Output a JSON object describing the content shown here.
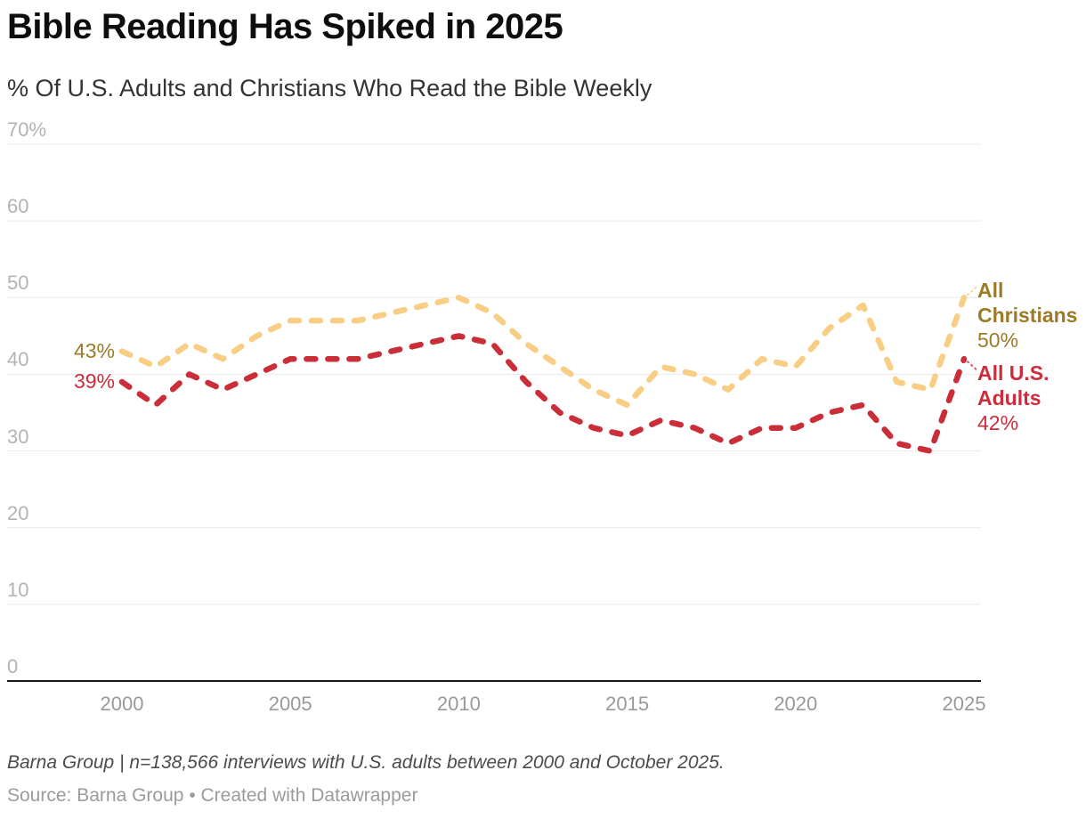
{
  "chart_data": {
    "type": "line",
    "title": "Bible Reading Has Spiked in 2025",
    "subtitle": "% Of U.S. Adults and Christians Who Read the Bible Weekly",
    "x": [
      2000,
      2001,
      2002,
      2003,
      2004,
      2005,
      2006,
      2007,
      2008,
      2009,
      2010,
      2011,
      2012,
      2013,
      2014,
      2015,
      2016,
      2017,
      2018,
      2019,
      2020,
      2021,
      2022,
      2023,
      2024,
      2025
    ],
    "xticks": [
      2000,
      2005,
      2010,
      2015,
      2020,
      2025
    ],
    "yticks": [
      {
        "value": 0,
        "label": "0"
      },
      {
        "value": 10,
        "label": "10"
      },
      {
        "value": 20,
        "label": "20"
      },
      {
        "value": 30,
        "label": "30"
      },
      {
        "value": 40,
        "label": "40"
      },
      {
        "value": 50,
        "label": "50"
      },
      {
        "value": 60,
        "label": "60"
      },
      {
        "value": 70,
        "label": "70%"
      }
    ],
    "ylim": [
      0,
      70
    ],
    "xlim": [
      2000,
      2025
    ],
    "grid": true,
    "legend_position": "right-edge-labels",
    "line_style": "dashed",
    "series": [
      {
        "name": "All Christians",
        "label_lines": [
          "All",
          "Christians"
        ],
        "start_value_label": "43%",
        "end_value_label": "50%",
        "line_color": "#F8CE85",
        "label_color": "#9C7B27",
        "values": [
          43,
          41,
          44,
          42,
          45,
          47,
          47,
          47,
          48,
          49,
          50,
          48,
          44,
          41,
          38,
          36,
          41,
          40,
          38,
          42,
          41,
          46,
          49,
          39,
          38,
          50
        ]
      },
      {
        "name": "All U.S. Adults",
        "label_lines": [
          "All U.S.",
          "Adults"
        ],
        "start_value_label": "39%",
        "end_value_label": "42%",
        "line_color": "#CA2E38",
        "label_color": "#CE2C3C",
        "values": [
          39,
          36,
          40,
          38,
          40,
          42,
          42,
          42,
          43,
          44,
          45,
          44,
          39,
          35,
          33,
          32,
          34,
          33,
          31,
          33,
          33,
          35,
          36,
          31,
          30,
          42
        ]
      }
    ]
  },
  "footer": {
    "note": "Barna Group | n=138,566 interviews with U.S. adults between 2000 and October 2025.",
    "source_prefix": "Source:",
    "source": "Barna Group",
    "separator": "•",
    "attribution": "Created with Datawrapper"
  }
}
